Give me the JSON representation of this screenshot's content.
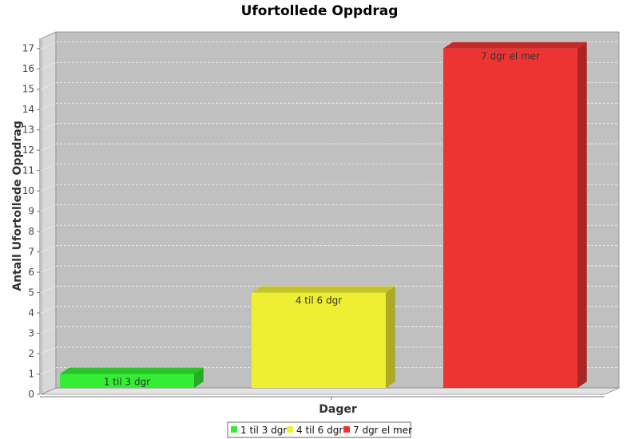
{
  "chart_data": {
    "type": "bar",
    "title": "Ufortollede Oppdrag",
    "xlabel": "Dager",
    "ylabel": "Antall Ufortollede Oppdrag",
    "categories": [
      "1 til 3 dgr",
      "4 til 6 dgr",
      "7 dgr el mer"
    ],
    "values": [
      1,
      5,
      17
    ],
    "bar_labels": [
      "1 til 3 dgr",
      "4 til 6 dgr",
      "7 dgr el mer"
    ],
    "colors": [
      "#33ee33",
      "#eeee33",
      "#ee3333"
    ],
    "ylim": [
      0,
      17
    ],
    "yticks": [
      0,
      1,
      2,
      3,
      4,
      5,
      6,
      7,
      8,
      9,
      10,
      11,
      12,
      13,
      14,
      15,
      16,
      17
    ],
    "grid": true,
    "three_d": true,
    "legend": {
      "position": "bottom",
      "entries": [
        "1 til 3 dgr",
        "4 til 6 dgr",
        "7 dgr el mer"
      ]
    }
  }
}
